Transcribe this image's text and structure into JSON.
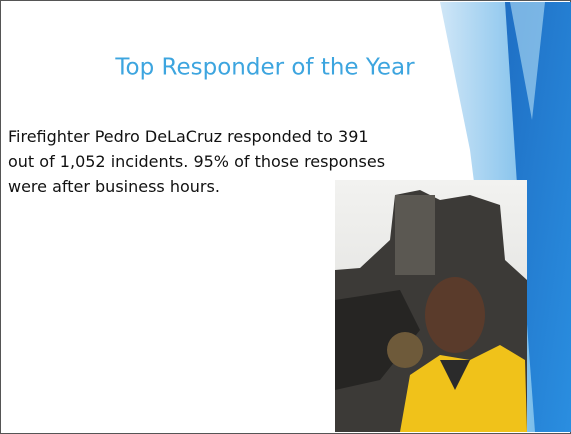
{
  "slide": {
    "title": "Top Responder of the Year",
    "body": [
      "Firefighter Pedro DeLaCruz responded to 391",
      "out of 1,052 incidents. 95% of those responses",
      "were after business hours."
    ]
  }
}
